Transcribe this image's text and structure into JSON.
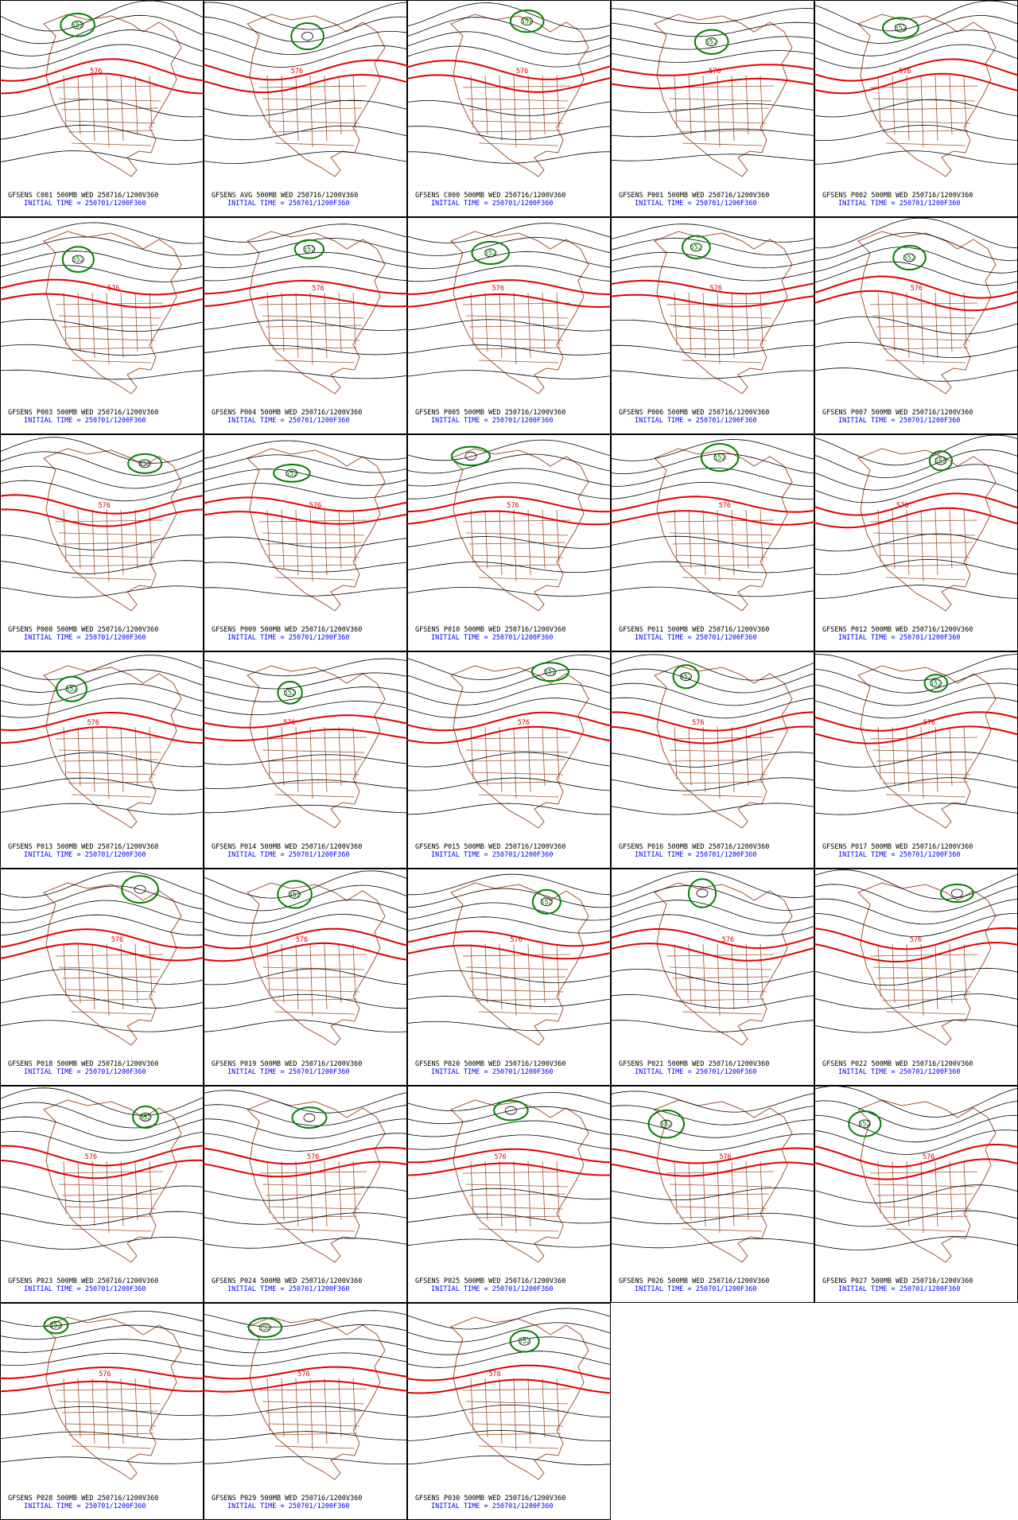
{
  "panels": [
    {
      "title": "GFSENS C001 500MB WED 250716/1200V360",
      "init_time": "INITIAL TIME = 250701/1200F360",
      "contour_labels": [
        "576",
        "552"
      ]
    },
    {
      "title": "GFSENS AVG 500MB WED 250716/1200V360",
      "init_time": "INITIAL TIME = 250701/1200F360",
      "contour_labels": [
        "576"
      ]
    },
    {
      "title": "GFSENS C000 500MB WED 250716/1200V360",
      "init_time": "INITIAL TIME = 250701/1200F360",
      "contour_labels": [
        "576",
        "552"
      ]
    },
    {
      "title": "GFSENS P001 500MB WED 250716/1200V360",
      "init_time": "INITIAL TIME = 250701/1200F360",
      "contour_labels": [
        "576",
        "552"
      ]
    },
    {
      "title": "GFSENS P002 500MB WED 250716/1200V360",
      "init_time": "INITIAL TIME = 250701/1200F360",
      "contour_labels": [
        "576",
        "552"
      ]
    },
    {
      "title": "GFSENS P003 500MB WED 250716/1200V360",
      "init_time": "INITIAL TIME = 250701/1200F360",
      "contour_labels": [
        "576",
        "552"
      ]
    },
    {
      "title": "GFSENS P004 500MB WED 250716/1200V360",
      "init_time": "INITIAL TIME = 250701/1200F360",
      "contour_labels": [
        "576",
        "552"
      ]
    },
    {
      "title": "GFSENS P005 500MB WED 250716/1200V360",
      "init_time": "INITIAL TIME = 250701/1200F360",
      "contour_labels": [
        "576",
        "552"
      ]
    },
    {
      "title": "GFSENS P006 500MB WED 250716/1200V360",
      "init_time": "INITIAL TIME = 250701/1200F360",
      "contour_labels": [
        "576",
        "552"
      ]
    },
    {
      "title": "GFSENS P007 500MB WED 250716/1200V360",
      "init_time": "INITIAL TIME = 250701/1200F360",
      "contour_labels": [
        "576",
        "552"
      ]
    },
    {
      "title": "GFSENS P008 500MB WED 250716/1200V360",
      "init_time": "INITIAL TIME = 250701/1200F360",
      "contour_labels": [
        "576",
        "552"
      ]
    },
    {
      "title": "GFSENS P009 500MB WED 250716/1200V360",
      "init_time": "INITIAL TIME = 250701/1200F360",
      "contour_labels": [
        "576",
        "552"
      ]
    },
    {
      "title": "GFSENS P010 500MB WED 250716/1200V360",
      "init_time": "INITIAL TIME = 250701/1200F360",
      "contour_labels": [
        "576"
      ]
    },
    {
      "title": "GFSENS P011 500MB WED 250716/1200V360",
      "init_time": "INITIAL TIME = 250701/1200F360",
      "contour_labels": [
        "576",
        "552"
      ]
    },
    {
      "title": "GFSENS P012 500MB WED 250716/1200V360",
      "init_time": "INITIAL TIME = 250701/1200F360",
      "contour_labels": [
        "576",
        "552"
      ]
    },
    {
      "title": "GFSENS P013 500MB WED 250716/1200V360",
      "init_time": "INITIAL TIME = 250701/1200F360",
      "contour_labels": [
        "576",
        "552"
      ]
    },
    {
      "title": "GFSENS P014 500MB WED 250716/1200V360",
      "init_time": "INITIAL TIME = 250701/1200F360",
      "contour_labels": [
        "576",
        "552"
      ]
    },
    {
      "title": "GFSENS P015 500MB WED 250716/1200V360",
      "init_time": "INITIAL TIME = 250701/1200F360",
      "contour_labels": [
        "576",
        "552"
      ]
    },
    {
      "title": "GFSENS P016 500MB WED 250716/1200V360",
      "init_time": "INITIAL TIME = 250701/1200F360",
      "contour_labels": [
        "576",
        "552"
      ]
    },
    {
      "title": "GFSENS P017 500MB WED 250716/1200V360",
      "init_time": "INITIAL TIME = 250701/1200F360",
      "contour_labels": [
        "576",
        "552"
      ]
    },
    {
      "title": "GFSENS P018 500MB WED 250716/1200V360",
      "init_time": "INITIAL TIME = 250701/1200F360",
      "contour_labels": [
        "576"
      ]
    },
    {
      "title": "GFSENS P019 500MB WED 250716/1200V360",
      "init_time": "INITIAL TIME = 250701/1200F360",
      "contour_labels": [
        "576",
        "552"
      ]
    },
    {
      "title": "GFSENS P020 500MB WED 250716/1200V360",
      "init_time": "INITIAL TIME = 250701/1200F360",
      "contour_labels": [
        "576",
        "552"
      ]
    },
    {
      "title": "GFSENS P021 500MB WED 250716/1200V360",
      "init_time": "INITIAL TIME = 250701/1200F360",
      "contour_labels": [
        "576"
      ]
    },
    {
      "title": "GFSENS P022 500MB WED 250716/1200V360",
      "init_time": "INITIAL TIME = 250701/1200F360",
      "contour_labels": [
        "576"
      ]
    },
    {
      "title": "GFSENS P023 500MB WED 250716/1200V360",
      "init_time": "INITIAL TIME = 250701/1200F360",
      "contour_labels": [
        "576",
        "552"
      ]
    },
    {
      "title": "GFSENS P024 500MB WED 250716/1200V360",
      "init_time": "INITIAL TIME = 250701/1200F360",
      "contour_labels": [
        "576"
      ]
    },
    {
      "title": "GFSENS P025 500MB WED 250716/1200V360",
      "init_time": "INITIAL TIME = 250701/1200F360",
      "contour_labels": [
        "576"
      ]
    },
    {
      "title": "GFSENS P026 500MB WED 250716/1200V360",
      "init_time": "INITIAL TIME = 250701/1200F360",
      "contour_labels": [
        "576",
        "552"
      ]
    },
    {
      "title": "GFSENS P027 500MB WED 250716/1200V360",
      "init_time": "INITIAL TIME = 250701/1200F360",
      "contour_labels": [
        "576",
        "552"
      ]
    },
    {
      "title": "GFSENS P028 500MB WED 250716/1200V360",
      "init_time": "INITIAL TIME = 250701/1200F360",
      "contour_labels": [
        "576",
        "552"
      ]
    },
    {
      "title": "GFSENS P029 500MB WED 250716/1200V360",
      "init_time": "INITIAL TIME = 250701/1200F360",
      "contour_labels": [
        "576",
        "552"
      ]
    },
    {
      "title": "GFSENS P030 500MB WED 250716/1200V360",
      "init_time": "INITIAL TIME = 250701/1200F360",
      "contour_labels": [
        "576",
        "552"
      ]
    }
  ]
}
